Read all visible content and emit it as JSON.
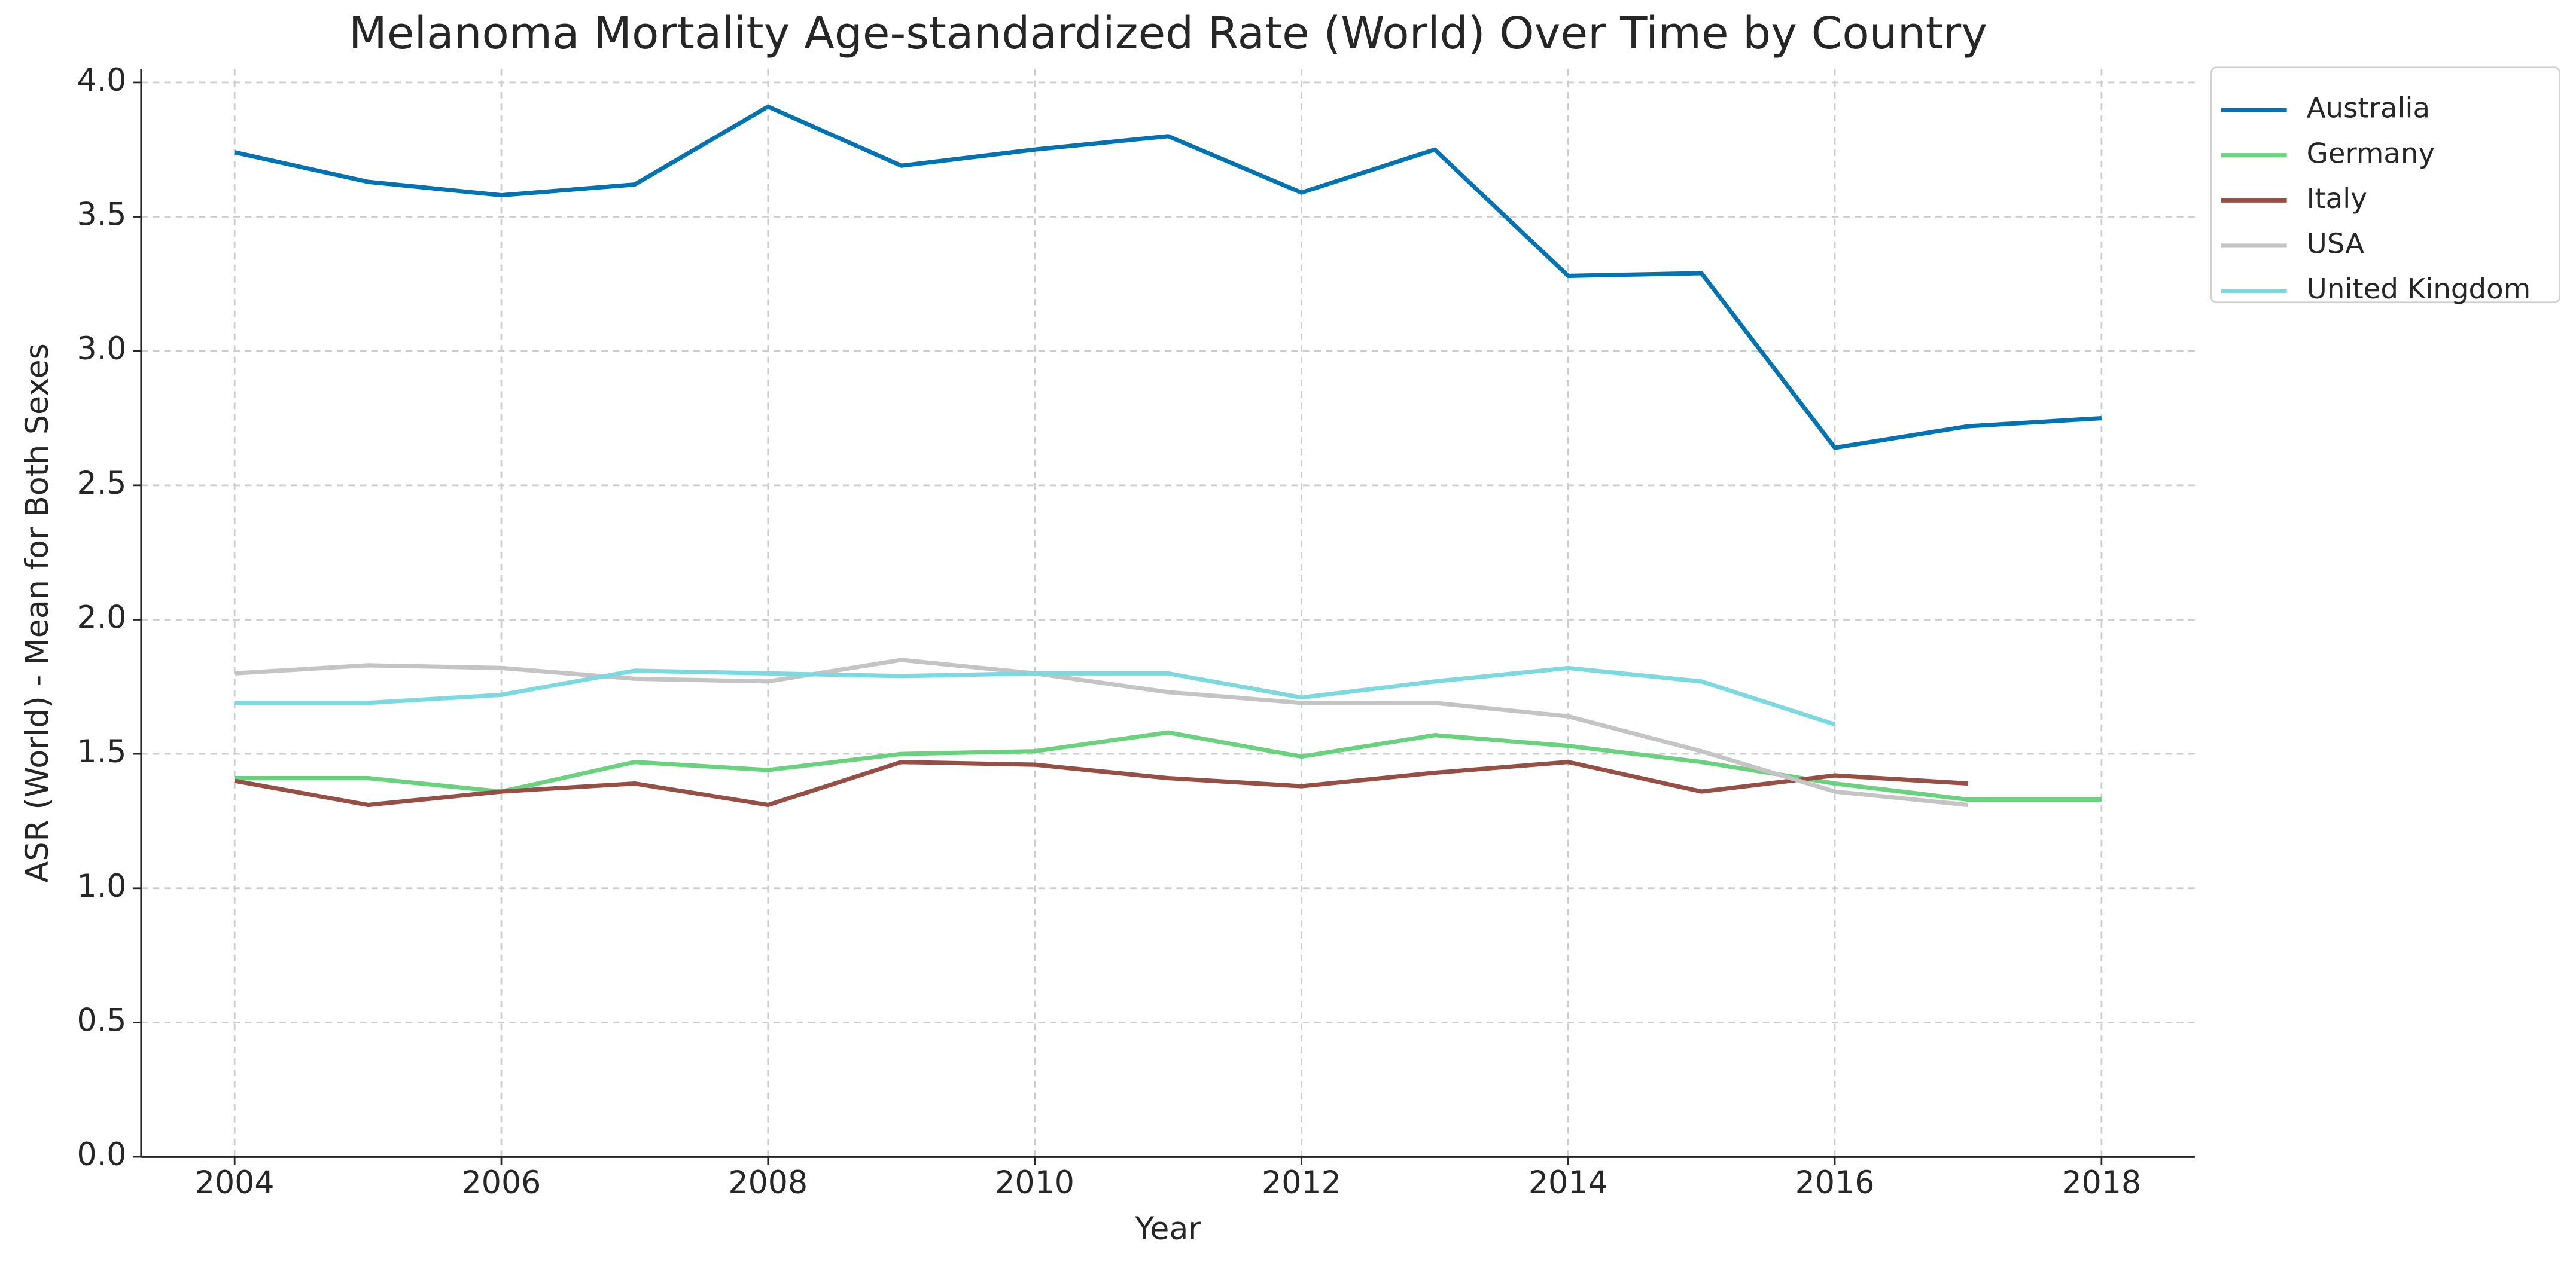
{
  "chart_data": {
    "type": "line",
    "title": "Melanoma Mortality Age-standardized Rate (World) Over Time by Country",
    "x_label": "Year",
    "y_label": "ASR (World) - Mean for Both Sexes",
    "x": [
      2004,
      2005,
      2006,
      2007,
      2008,
      2009,
      2010,
      2011,
      2012,
      2013,
      2014,
      2015,
      2016,
      2017,
      2018
    ],
    "series": [
      {
        "name": "Australia",
        "color": "#0173b2",
        "values": [
          3.74,
          3.63,
          3.58,
          3.62,
          3.91,
          3.69,
          3.75,
          3.8,
          3.59,
          3.75,
          3.28,
          3.29,
          2.64,
          2.72,
          2.75
        ]
      },
      {
        "name": "Germany",
        "color": "#6ad27e",
        "values": [
          1.41,
          1.41,
          1.36,
          1.47,
          1.44,
          1.5,
          1.51,
          1.58,
          1.49,
          1.57,
          1.53,
          1.47,
          1.39,
          1.33,
          1.33
        ]
      },
      {
        "name": "Italy",
        "color": "#964f45",
        "values": [
          1.4,
          1.31,
          1.36,
          1.39,
          1.31,
          1.47,
          1.46,
          1.41,
          1.38,
          1.43,
          1.47,
          1.36,
          1.42,
          1.39,
          null
        ]
      },
      {
        "name": "USA",
        "color": "#c4c4c4",
        "values": [
          1.8,
          1.83,
          1.82,
          1.78,
          1.77,
          1.85,
          1.8,
          1.73,
          1.69,
          1.69,
          1.64,
          1.51,
          1.36,
          1.31,
          null
        ]
      },
      {
        "name": "United Kingdom",
        "color": "#7dd9e0",
        "values": [
          1.69,
          1.69,
          1.72,
          1.81,
          1.8,
          1.79,
          1.8,
          1.8,
          1.71,
          1.77,
          1.82,
          1.77,
          1.61,
          null,
          null
        ]
      }
    ],
    "xlim": [
      2003.3,
      2018.7
    ],
    "ylim": [
      0,
      4.05
    ],
    "xticks": [
      2004,
      2006,
      2008,
      2010,
      2012,
      2014,
      2016,
      2018
    ],
    "yticks": [
      {
        "value": 0,
        "label": "0.0"
      },
      {
        "value": 0.5,
        "label": "0.5"
      },
      {
        "value": 1,
        "label": "1.0"
      },
      {
        "value": 1.5,
        "label": "1.5"
      },
      {
        "value": 2,
        "label": "2.0"
      },
      {
        "value": 2.5,
        "label": "2.5"
      },
      {
        "value": 3,
        "label": "3.0"
      },
      {
        "value": 3.5,
        "label": "3.5"
      },
      {
        "value": 4,
        "label": "4.0"
      }
    ],
    "grid": true,
    "legend": "upper right"
  }
}
